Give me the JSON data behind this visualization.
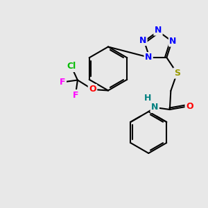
{
  "background_color": "#e8e8e8",
  "bond_color": "#000000",
  "atom_colors": {
    "N": "#0000ff",
    "N_amide": "#008080",
    "O": "#ff0000",
    "S": "#999900",
    "Cl": "#00bb00",
    "F": "#ff00ff",
    "H": "#008080",
    "C": "#000000"
  },
  "figsize": [
    3.0,
    3.0
  ],
  "dpi": 100
}
